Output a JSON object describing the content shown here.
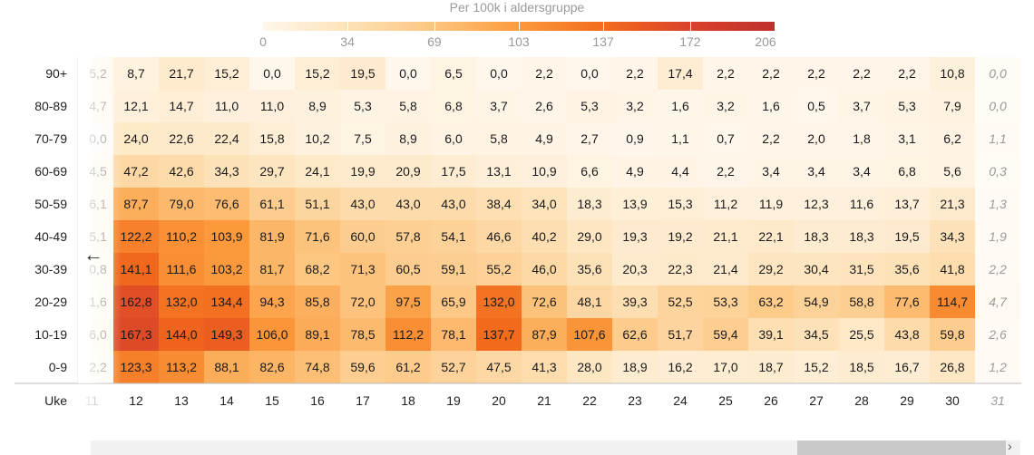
{
  "legend": {
    "title": "Per 100k i aldersgruppe",
    "ticks": [
      "0",
      "34",
      "69",
      "103",
      "137",
      "172",
      "206"
    ],
    "max": 206
  },
  "axis": {
    "week_label": "Uke"
  },
  "icons": {
    "left_arrow": "arrow-left-icon",
    "right_arrow": "chevron-right-icon"
  },
  "chart_data": {
    "type": "heatmap",
    "xlabel": "Uke",
    "colorbar_label": "Per 100k i aldersgruppe",
    "colorbar_range": [
      0,
      206
    ],
    "colors": [
      "#fff7ec",
      "#fdc57f",
      "#f26b1d",
      "#c0302f"
    ],
    "x_partial": "11",
    "x": [
      "12",
      "13",
      "14",
      "15",
      "16",
      "17",
      "18",
      "19",
      "20",
      "21",
      "22",
      "23",
      "24",
      "25",
      "26",
      "27",
      "28",
      "29",
      "30"
    ],
    "x_ghost": "31",
    "y": [
      "90+",
      "80-89",
      "70-79",
      "60-69",
      "50-59",
      "40-49",
      "30-39",
      "20-29",
      "10-19",
      "0-9"
    ],
    "partial": [
      "5,2",
      "4,7",
      "0,0",
      "4,5",
      "6,1",
      "5,1",
      "0,8",
      "1,6",
      "6,0",
      "2,2"
    ],
    "values": [
      [
        "8,7",
        "21,7",
        "15,2",
        "0,0",
        "15,2",
        "19,5",
        "0,0",
        "6,5",
        "0,0",
        "2,2",
        "0,0",
        "2,2",
        "17,4",
        "2,2",
        "2,2",
        "2,2",
        "2,2",
        "2,2",
        "10,8"
      ],
      [
        "12,1",
        "14,7",
        "11,0",
        "11,0",
        "8,9",
        "5,3",
        "5,8",
        "6,8",
        "3,7",
        "2,6",
        "5,3",
        "3,2",
        "1,6",
        "3,2",
        "1,6",
        "0,5",
        "3,7",
        "5,3",
        "7,9"
      ],
      [
        "24,0",
        "22,6",
        "22,4",
        "15,8",
        "10,2",
        "7,5",
        "8,9",
        "6,0",
        "5,8",
        "4,9",
        "2,7",
        "0,9",
        "1,1",
        "0,7",
        "2,2",
        "2,0",
        "1,8",
        "3,1",
        "6,2"
      ],
      [
        "47,2",
        "42,6",
        "34,3",
        "29,7",
        "24,1",
        "19,9",
        "20,9",
        "17,5",
        "13,1",
        "10,9",
        "6,6",
        "4,9",
        "4,4",
        "2,2",
        "3,4",
        "3,4",
        "3,4",
        "6,8",
        "5,6"
      ],
      [
        "87,7",
        "79,0",
        "76,6",
        "61,1",
        "51,1",
        "43,0",
        "43,0",
        "43,0",
        "38,4",
        "34,0",
        "18,3",
        "13,9",
        "15,3",
        "11,2",
        "11,9",
        "12,3",
        "11,6",
        "13,7",
        "21,3"
      ],
      [
        "122,2",
        "110,2",
        "103,9",
        "81,9",
        "71,6",
        "60,0",
        "57,8",
        "54,1",
        "46,6",
        "40,2",
        "29,0",
        "19,3",
        "19,2",
        "21,1",
        "22,1",
        "18,3",
        "18,3",
        "19,5",
        "34,3"
      ],
      [
        "141,1",
        "111,6",
        "103,2",
        "81,7",
        "68,2",
        "71,3",
        "60,5",
        "59,1",
        "55,2",
        "46,0",
        "35,6",
        "20,3",
        "22,3",
        "21,4",
        "29,2",
        "30,4",
        "31,5",
        "35,6",
        "41,8"
      ],
      [
        "162,8",
        "132,0",
        "134,4",
        "94,3",
        "85,8",
        "72,0",
        "97,5",
        "65,9",
        "132,0",
        "72,6",
        "48,1",
        "39,3",
        "52,5",
        "53,3",
        "63,2",
        "54,9",
        "58,8",
        "77,6",
        "114,7"
      ],
      [
        "167,3",
        "144,0",
        "149,3",
        "106,0",
        "89,1",
        "78,5",
        "112,2",
        "78,1",
        "137,7",
        "87,9",
        "107,6",
        "62,6",
        "51,7",
        "59,4",
        "39,1",
        "34,5",
        "25,5",
        "43,8",
        "59,8"
      ],
      [
        "123,3",
        "113,2",
        "88,1",
        "82,6",
        "74,8",
        "59,6",
        "61,2",
        "52,7",
        "47,5",
        "41,3",
        "28,0",
        "18,9",
        "16,2",
        "17,0",
        "18,7",
        "15,2",
        "18,5",
        "16,7",
        "26,8"
      ]
    ],
    "ghost": [
      "0,0",
      "0,0",
      "1,1",
      "0,3",
      "1,3",
      "1,9",
      "2,2",
      "4,7",
      "2,6",
      "1,2"
    ]
  }
}
